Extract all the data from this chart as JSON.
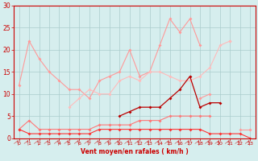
{
  "x": [
    0,
    1,
    2,
    3,
    4,
    5,
    6,
    7,
    8,
    9,
    10,
    11,
    12,
    13,
    14,
    15,
    16,
    17,
    18,
    19,
    20,
    21,
    22,
    23
  ],
  "series": [
    {
      "color": "#FF9999",
      "lw": 0.8,
      "y": [
        12,
        22,
        18,
        15,
        13,
        11,
        11,
        9,
        13,
        14,
        15,
        20,
        14,
        15,
        21,
        27,
        24,
        27,
        21,
        null,
        null,
        22,
        null,
        null
      ]
    },
    {
      "color": "#FFBBBB",
      "lw": 0.8,
      "y": [
        2,
        null,
        null,
        null,
        null,
        7,
        9,
        11,
        10,
        10,
        13,
        14,
        13,
        15,
        15,
        14,
        13,
        13,
        14,
        16,
        21,
        22,
        null,
        2
      ]
    },
    {
      "color": "#FF7777",
      "lw": 0.8,
      "y": [
        2,
        4,
        2,
        2,
        2,
        2,
        2,
        2,
        3,
        3,
        3,
        3,
        4,
        4,
        4,
        5,
        5,
        5,
        5,
        5,
        null,
        null,
        null,
        null
      ]
    },
    {
      "color": "#FF3333",
      "lw": 0.8,
      "y": [
        2,
        1,
        1,
        1,
        1,
        1,
        1,
        1,
        2,
        2,
        2,
        2,
        2,
        2,
        2,
        2,
        2,
        2,
        2,
        1,
        1,
        1,
        1,
        0
      ]
    },
    {
      "color": "#BB0000",
      "lw": 0.9,
      "y": [
        null,
        null,
        null,
        null,
        null,
        null,
        null,
        null,
        null,
        null,
        5,
        6,
        7,
        7,
        7,
        9,
        11,
        14,
        7,
        8,
        8,
        null,
        null,
        null
      ]
    },
    {
      "color": "#FF9999",
      "lw": 0.8,
      "y": [
        null,
        null,
        null,
        null,
        null,
        null,
        null,
        null,
        null,
        null,
        null,
        null,
        null,
        null,
        null,
        null,
        null,
        null,
        9,
        10,
        null,
        null,
        2,
        2
      ]
    }
  ],
  "ylim": [
    0,
    30
  ],
  "yticks": [
    0,
    5,
    10,
    15,
    20,
    25,
    30
  ],
  "xlim": [
    -0.5,
    23.5
  ],
  "xticks": [
    0,
    1,
    2,
    3,
    4,
    5,
    6,
    7,
    8,
    9,
    10,
    11,
    12,
    13,
    14,
    15,
    16,
    17,
    18,
    19,
    20,
    21,
    22,
    23
  ],
  "xlabel": "Vent moyen/en rafales ( km/h )",
  "bg_color": "#D6EEEE",
  "grid_color": "#AACCCC",
  "tick_color": "#CC0000",
  "label_color": "#CC0000",
  "markersize": 2.0
}
